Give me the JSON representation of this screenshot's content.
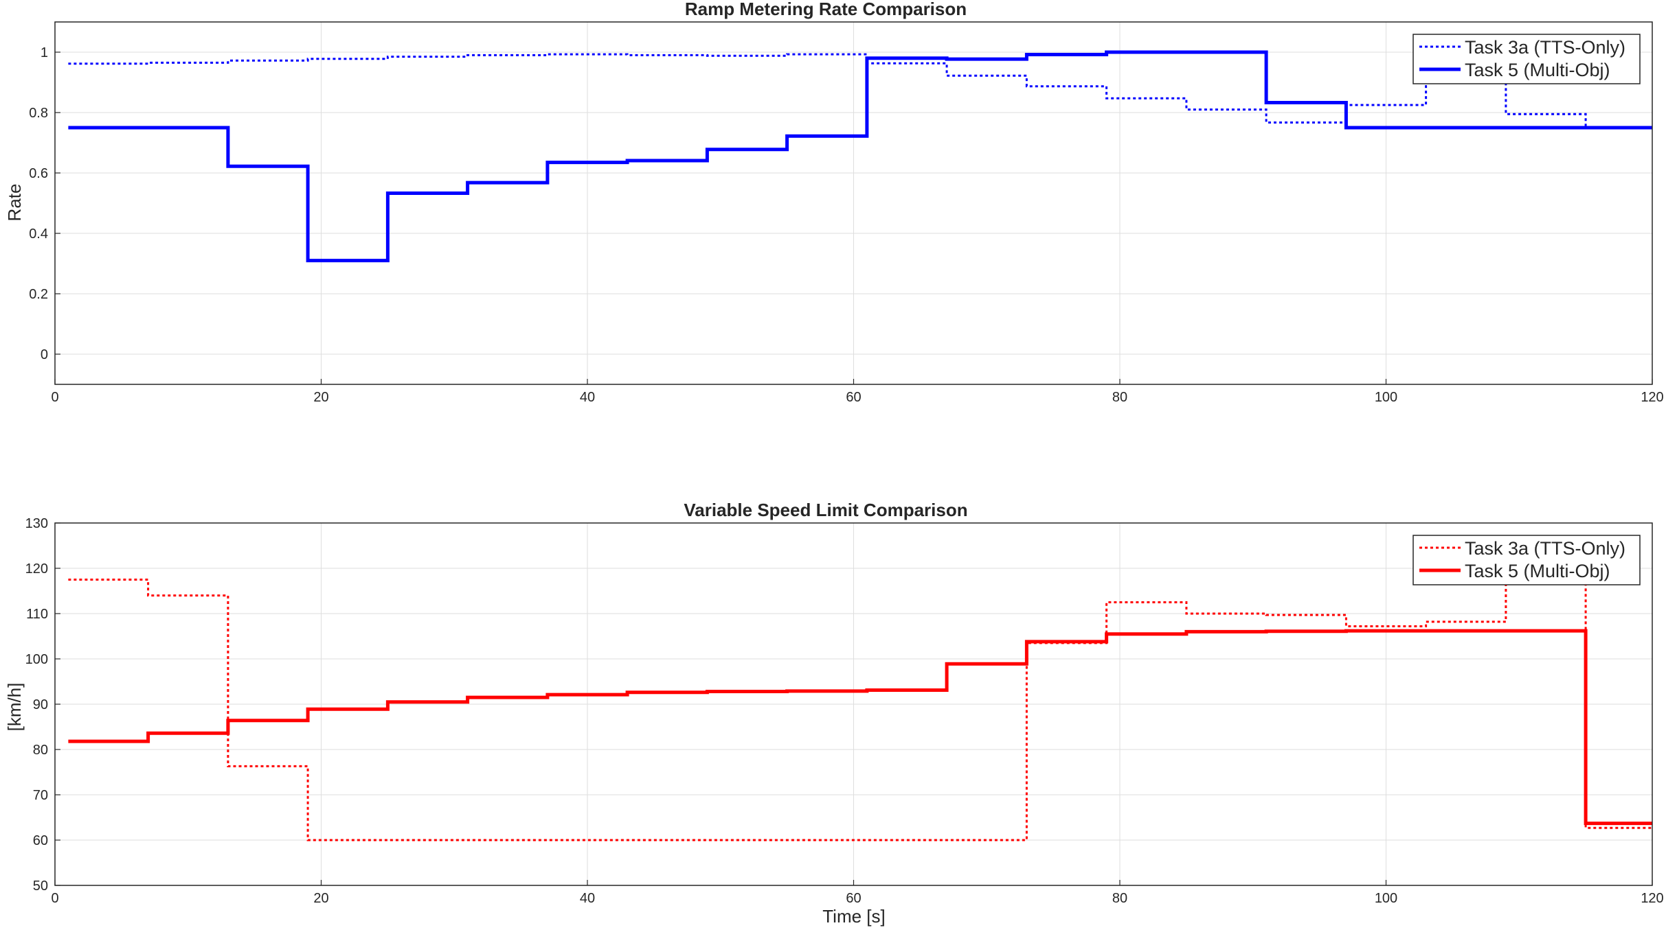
{
  "chart_data": [
    {
      "type": "line",
      "step": "post",
      "title": "Ramp Metering Rate Comparison",
      "xlabel": "",
      "ylabel": "Rate",
      "xlim": [
        0,
        120
      ],
      "ylim": [
        -0.1,
        1.1
      ],
      "xticks": [
        0,
        20,
        40,
        60,
        80,
        100,
        120
      ],
      "yticks": [
        0,
        0.2,
        0.4,
        0.6,
        0.8,
        1
      ],
      "xtick_labels": [
        "0",
        "20",
        "40",
        "60",
        "80",
        "100",
        "120"
      ],
      "ytick_labels": [
        "0",
        "0.2",
        "0.4",
        "0.6",
        "0.8",
        "1"
      ],
      "grid": true,
      "legend_position": "top-right",
      "series": [
        {
          "name": "Task 3a (TTS-Only)",
          "style": "dotted",
          "color": "#0000FF",
          "x": [
            1,
            7,
            13,
            19,
            25,
            31,
            37,
            43,
            49,
            55,
            61,
            67,
            73,
            79,
            85,
            91,
            97,
            103,
            109,
            115,
            121
          ],
          "y": [
            0.962,
            0.965,
            0.972,
            0.978,
            0.985,
            0.99,
            0.993,
            0.99,
            0.988,
            0.993,
            0.963,
            0.922,
            0.887,
            0.847,
            0.81,
            0.767,
            0.825,
            0.94,
            0.795,
            0.75,
            0.76
          ]
        },
        {
          "name": "Task 5 (Multi-Obj)",
          "style": "solid",
          "color": "#0000FF",
          "x": [
            1,
            7,
            13,
            19,
            25,
            31,
            37,
            43,
            49,
            55,
            61,
            67,
            73,
            79,
            85,
            91,
            97,
            103,
            109,
            115,
            121
          ],
          "y": [
            0.75,
            0.75,
            0.622,
            0.31,
            0.533,
            0.568,
            0.635,
            0.641,
            0.678,
            0.722,
            0.98,
            0.977,
            0.992,
            1.0,
            1.0,
            0.833,
            0.75,
            0.75,
            0.75,
            0.75,
            0.75
          ]
        }
      ]
    },
    {
      "type": "line",
      "step": "post",
      "title": "Variable Speed Limit Comparison",
      "xlabel": "Time [s]",
      "ylabel": "[km/h]",
      "xlim": [
        0,
        120
      ],
      "ylim": [
        50,
        130
      ],
      "xticks": [
        0,
        20,
        40,
        60,
        80,
        100,
        120
      ],
      "yticks": [
        50,
        60,
        70,
        80,
        90,
        100,
        110,
        120,
        130
      ],
      "xtick_labels": [
        "0",
        "20",
        "40",
        "60",
        "80",
        "100",
        "120"
      ],
      "ytick_labels": [
        "50",
        "60",
        "70",
        "80",
        "90",
        "100",
        "110",
        "120",
        "130"
      ],
      "grid": true,
      "legend_position": "top-right",
      "series": [
        {
          "name": "Task 3a (TTS-Only)",
          "style": "dotted",
          "color": "#FF0000",
          "x": [
            1,
            7,
            13,
            19,
            25,
            31,
            37,
            43,
            49,
            55,
            61,
            67,
            73,
            79,
            85,
            91,
            97,
            103,
            109,
            115,
            121
          ],
          "y": [
            117.5,
            114,
            76.3,
            60,
            60,
            60,
            60,
            60,
            60,
            60,
            60,
            60,
            103.5,
            112.5,
            110,
            109.7,
            107.2,
            108.2,
            127,
            62.7,
            62.7
          ]
        },
        {
          "name": "Task 5 (Multi-Obj)",
          "style": "solid",
          "color": "#FF0000",
          "x": [
            1,
            7,
            13,
            19,
            25,
            31,
            37,
            43,
            49,
            55,
            61,
            67,
            73,
            79,
            85,
            91,
            97,
            103,
            109,
            115,
            121
          ],
          "y": [
            81.8,
            83.6,
            86.4,
            88.9,
            90.5,
            91.5,
            92.1,
            92.6,
            92.8,
            92.9,
            93.1,
            98.9,
            103.8,
            105.5,
            106,
            106.1,
            106.2,
            106.2,
            106.2,
            63.7,
            63.7
          ]
        }
      ]
    }
  ]
}
